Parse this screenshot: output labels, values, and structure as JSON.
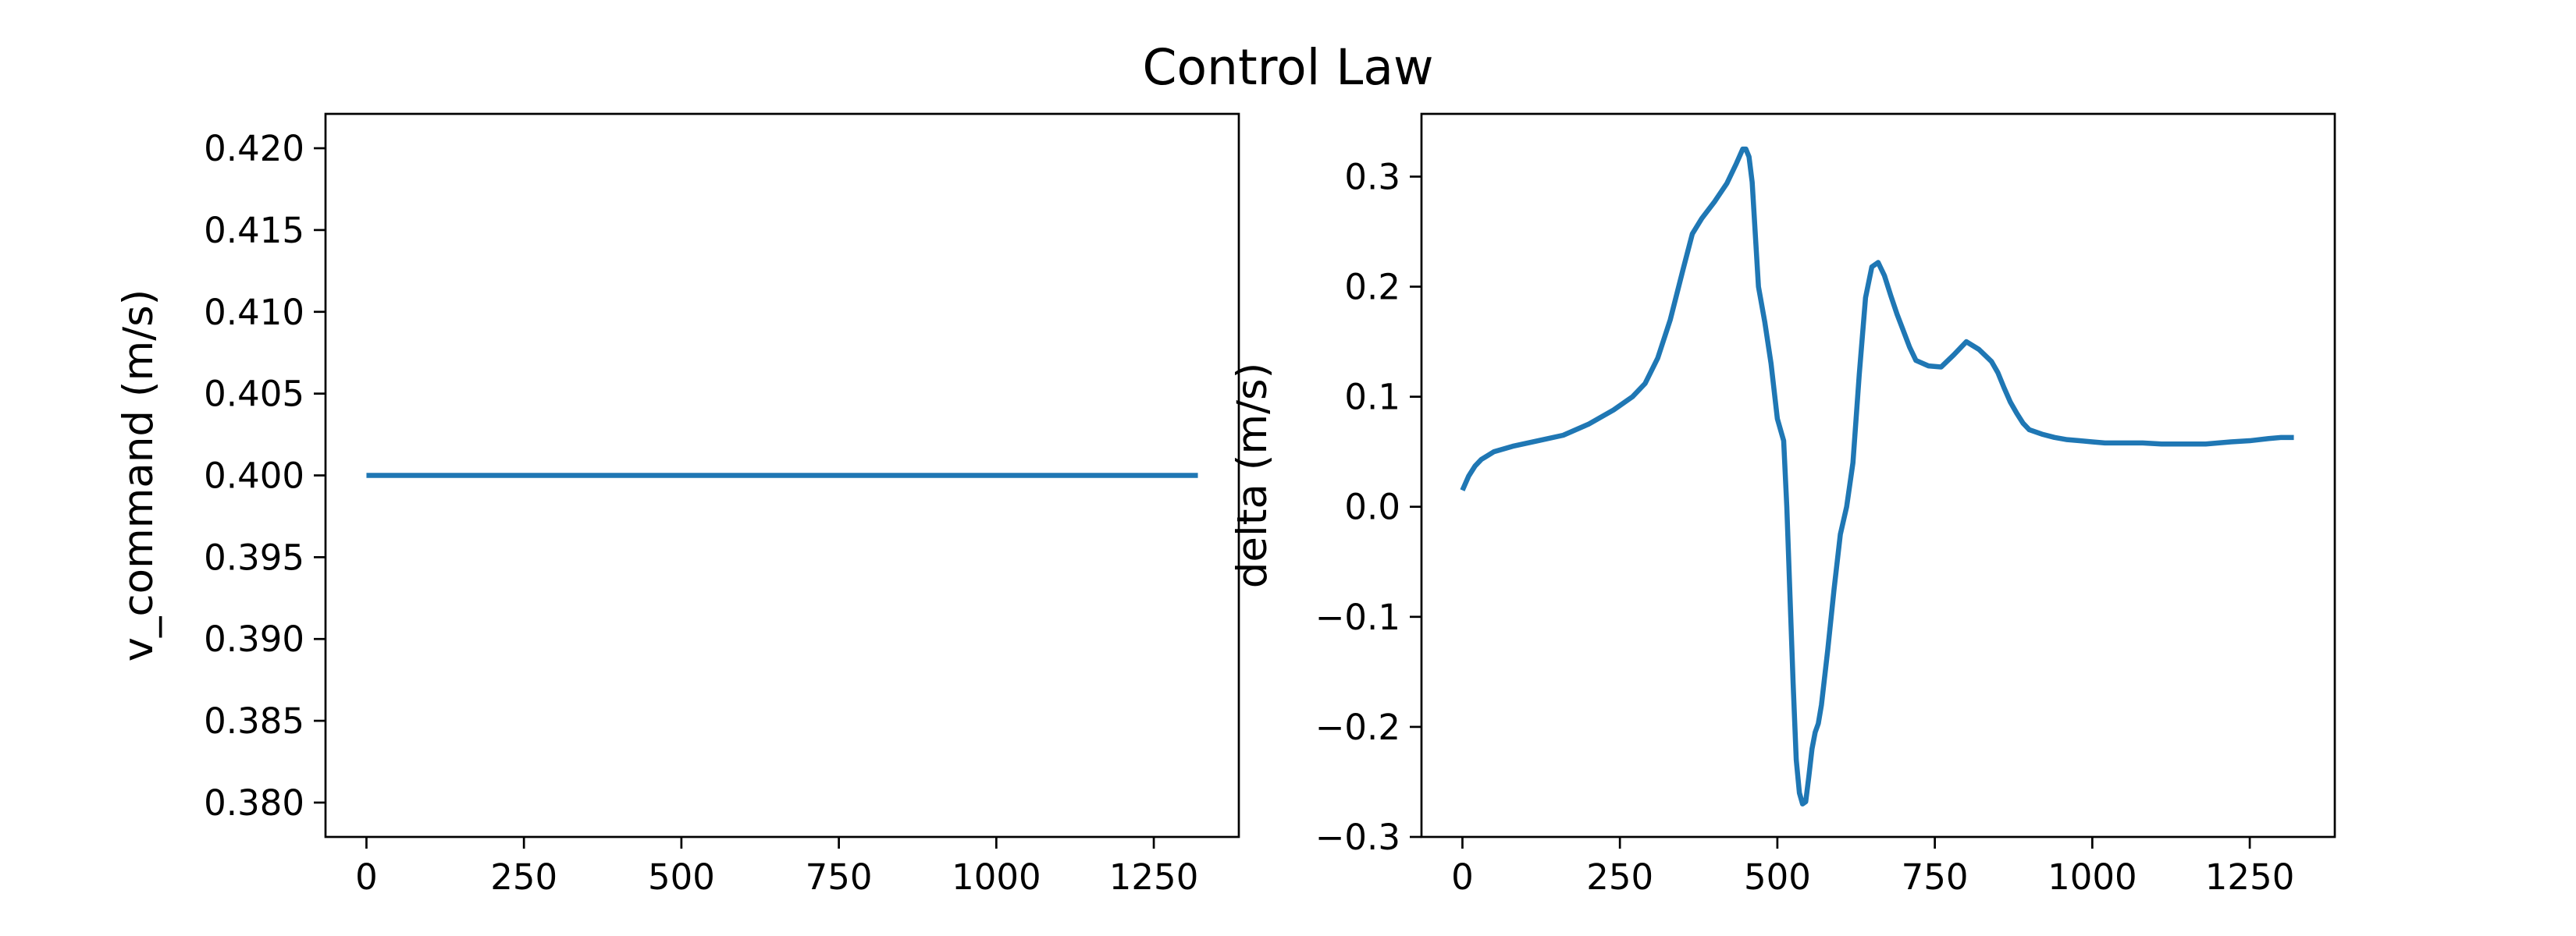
{
  "title": "Control Law",
  "chart_data": [
    {
      "type": "line",
      "xlabel": "",
      "ylabel": "v_command (m/s)",
      "xlim": [
        -65,
        1385
      ],
      "ylim": [
        0.3779,
        0.4221
      ],
      "xticks": [
        0,
        250,
        500,
        750,
        1000,
        1250
      ],
      "xtick_labels": [
        "0",
        "250",
        "500",
        "750",
        "1000",
        "1250"
      ],
      "yticks": [
        0.38,
        0.385,
        0.39,
        0.395,
        0.4,
        0.405,
        0.41,
        0.415,
        0.42
      ],
      "ytick_labels": [
        "0.380",
        "0.385",
        "0.390",
        "0.395",
        "0.400",
        "0.405",
        "0.410",
        "0.415",
        "0.420"
      ],
      "grid": false,
      "color": "#1f77b4",
      "series": [
        {
          "x": [
            0,
            1320
          ],
          "y": [
            0.4,
            0.4
          ]
        }
      ]
    },
    {
      "type": "line",
      "xlabel": "",
      "ylabel": "delta (m/s)",
      "xlim": [
        -65,
        1385
      ],
      "ylim": [
        -0.3,
        0.357
      ],
      "xticks": [
        0,
        250,
        500,
        750,
        1000,
        1250
      ],
      "xtick_labels": [
        "0",
        "250",
        "500",
        "750",
        "1000",
        "1250"
      ],
      "yticks": [
        -0.3,
        -0.2,
        -0.1,
        0.0,
        0.1,
        0.2,
        0.3
      ],
      "ytick_labels": [
        "−0.3",
        "−0.2",
        "−0.1",
        "0.0",
        "0.1",
        "0.2",
        "0.3"
      ],
      "grid": false,
      "color": "#1f77b4",
      "series": [
        {
          "x": [
            0,
            10,
            20,
            30,
            50,
            80,
            120,
            160,
            200,
            240,
            270,
            290,
            310,
            330,
            350,
            365,
            380,
            400,
            420,
            435,
            445,
            450,
            455,
            460,
            470,
            480,
            490,
            500,
            510,
            515,
            520,
            525,
            530,
            535,
            540,
            545,
            550,
            555,
            560,
            565,
            570,
            580,
            590,
            600,
            610,
            620,
            630,
            640,
            650,
            660,
            670,
            680,
            690,
            700,
            710,
            720,
            740,
            760,
            780,
            800,
            820,
            840,
            850,
            860,
            870,
            880,
            890,
            900,
            920,
            940,
            960,
            980,
            1000,
            1020,
            1050,
            1080,
            1110,
            1150,
            1180,
            1200,
            1220,
            1250,
            1280,
            1300,
            1320
          ],
          "y": [
            0.015,
            0.028,
            0.037,
            0.043,
            0.05,
            0.055,
            0.06,
            0.065,
            0.075,
            0.088,
            0.1,
            0.112,
            0.135,
            0.17,
            0.215,
            0.248,
            0.262,
            0.277,
            0.294,
            0.312,
            0.325,
            0.325,
            0.318,
            0.295,
            0.2,
            0.168,
            0.13,
            0.08,
            0.06,
            0.0,
            -0.08,
            -0.16,
            -0.23,
            -0.26,
            -0.27,
            -0.268,
            -0.245,
            -0.22,
            -0.205,
            -0.197,
            -0.18,
            -0.13,
            -0.075,
            -0.025,
            0.0,
            0.04,
            0.12,
            0.19,
            0.218,
            0.222,
            0.21,
            0.192,
            0.175,
            0.16,
            0.145,
            0.133,
            0.128,
            0.127,
            0.138,
            0.15,
            0.143,
            0.132,
            0.122,
            0.108,
            0.095,
            0.085,
            0.076,
            0.07,
            0.066,
            0.063,
            0.061,
            0.06,
            0.059,
            0.058,
            0.058,
            0.058,
            0.057,
            0.057,
            0.057,
            0.058,
            0.059,
            0.06,
            0.062,
            0.063,
            0.063
          ]
        }
      ]
    }
  ]
}
